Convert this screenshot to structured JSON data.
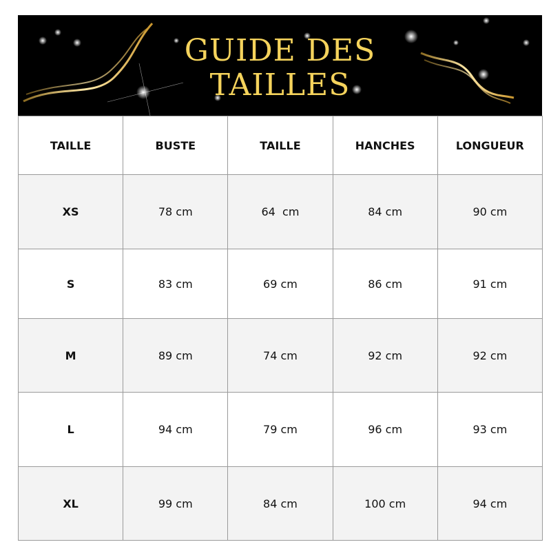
{
  "banner": {
    "title_line1": "GUIDE DES",
    "title_line2": "TAILLES",
    "title_color": "#f5d35c"
  },
  "table": {
    "headers": [
      "TAILLE",
      "BUSTE",
      "TAILLE",
      "HANCHES",
      "LONGUEUR"
    ],
    "rows": [
      [
        "XS",
        "78 cm",
        "64  cm",
        "84 cm",
        "90 cm"
      ],
      [
        "S",
        "83 cm",
        "69 cm",
        "86 cm",
        "91 cm"
      ],
      [
        "M",
        "89 cm",
        "74 cm",
        "92 cm",
        "92 cm"
      ],
      [
        "L",
        "94 cm",
        "79 cm",
        "96 cm",
        "93 cm"
      ],
      [
        "XL",
        "99 cm",
        "84 cm",
        "100 cm",
        "94 cm"
      ]
    ]
  }
}
